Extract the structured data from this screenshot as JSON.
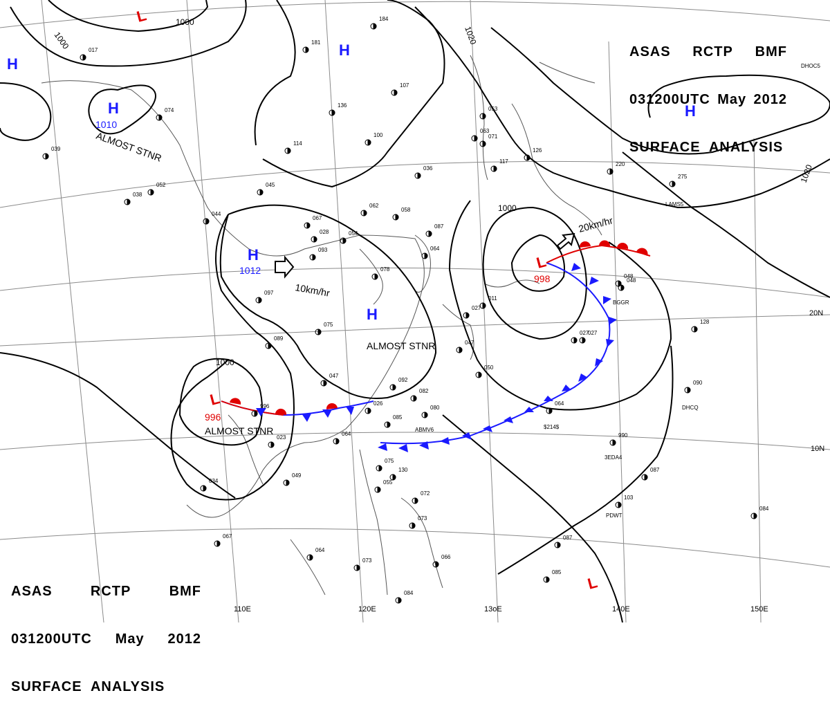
{
  "title_top": {
    "line1": [
      "ASAS",
      "RCTP",
      "BMF"
    ],
    "line2": [
      "031200UTC",
      "May",
      "2012"
    ],
    "line3": "SURFACE  ANALYSIS"
  },
  "title_bottom": {
    "line1": [
      "ASAS",
      "RCTP",
      "BMF"
    ],
    "line2": [
      "031200UTC",
      "May",
      "2012"
    ],
    "line3": "SURFACE  ANALYSIS"
  },
  "colors": {
    "high": "#1a1aff",
    "low": "#e00000",
    "isobar": "#000000",
    "grid": "#777777",
    "coast": "#444444"
  },
  "lon_labels": [
    "110E",
    "120E",
    "13oE",
    "140E",
    "150E"
  ],
  "lat_labels": [
    "20N",
    "10N"
  ],
  "isobar_labels": [
    "1000",
    "1000",
    "1020",
    "1020",
    "1000",
    "1000"
  ],
  "pressure_centers": [
    {
      "type": "H",
      "value": ""
    },
    {
      "type": "H",
      "value": "1010",
      "note": "ALMOST STNR"
    },
    {
      "type": "H",
      "value": ""
    },
    {
      "type": "H",
      "value": ""
    },
    {
      "type": "H",
      "value": "1012",
      "motion": "10km/hr"
    },
    {
      "type": "H",
      "value": "",
      "note": "ALMOST STNR"
    },
    {
      "type": "L",
      "value": ""
    },
    {
      "type": "L",
      "value": "998",
      "motion": "20km/hr"
    },
    {
      "type": "L",
      "value": "996",
      "note": "ALMOST STNR"
    },
    {
      "type": "L",
      "value": ""
    }
  ],
  "station_pressures": [
    "017",
    "074",
    "039",
    "038",
    "044",
    "045",
    "067",
    "097",
    "089",
    "075",
    "114",
    "136",
    "181",
    "107",
    "184",
    "100",
    "036",
    "062",
    "058",
    "054",
    "087",
    "078",
    "064",
    "028",
    "093",
    "048",
    "047",
    "027",
    "050",
    "027",
    "092",
    "082",
    "080",
    "085",
    "047",
    "026",
    "064",
    "049",
    "023",
    "034",
    "067",
    "063",
    "075",
    "055",
    "072",
    "130",
    "073",
    "064",
    "073",
    "066",
    "084",
    "071",
    "053",
    "117",
    "126",
    "220",
    "275",
    "128",
    "048",
    "027",
    "090",
    "064",
    "990",
    "087",
    "103",
    "084",
    "087",
    "085",
    "052",
    "996",
    "011"
  ],
  "station_ids": [
    "ABMV6",
    "3EDA4",
    "PDWT",
    "DHCQ",
    "LAMS5",
    "DHOC5",
    "$214$",
    "BGGR"
  ]
}
